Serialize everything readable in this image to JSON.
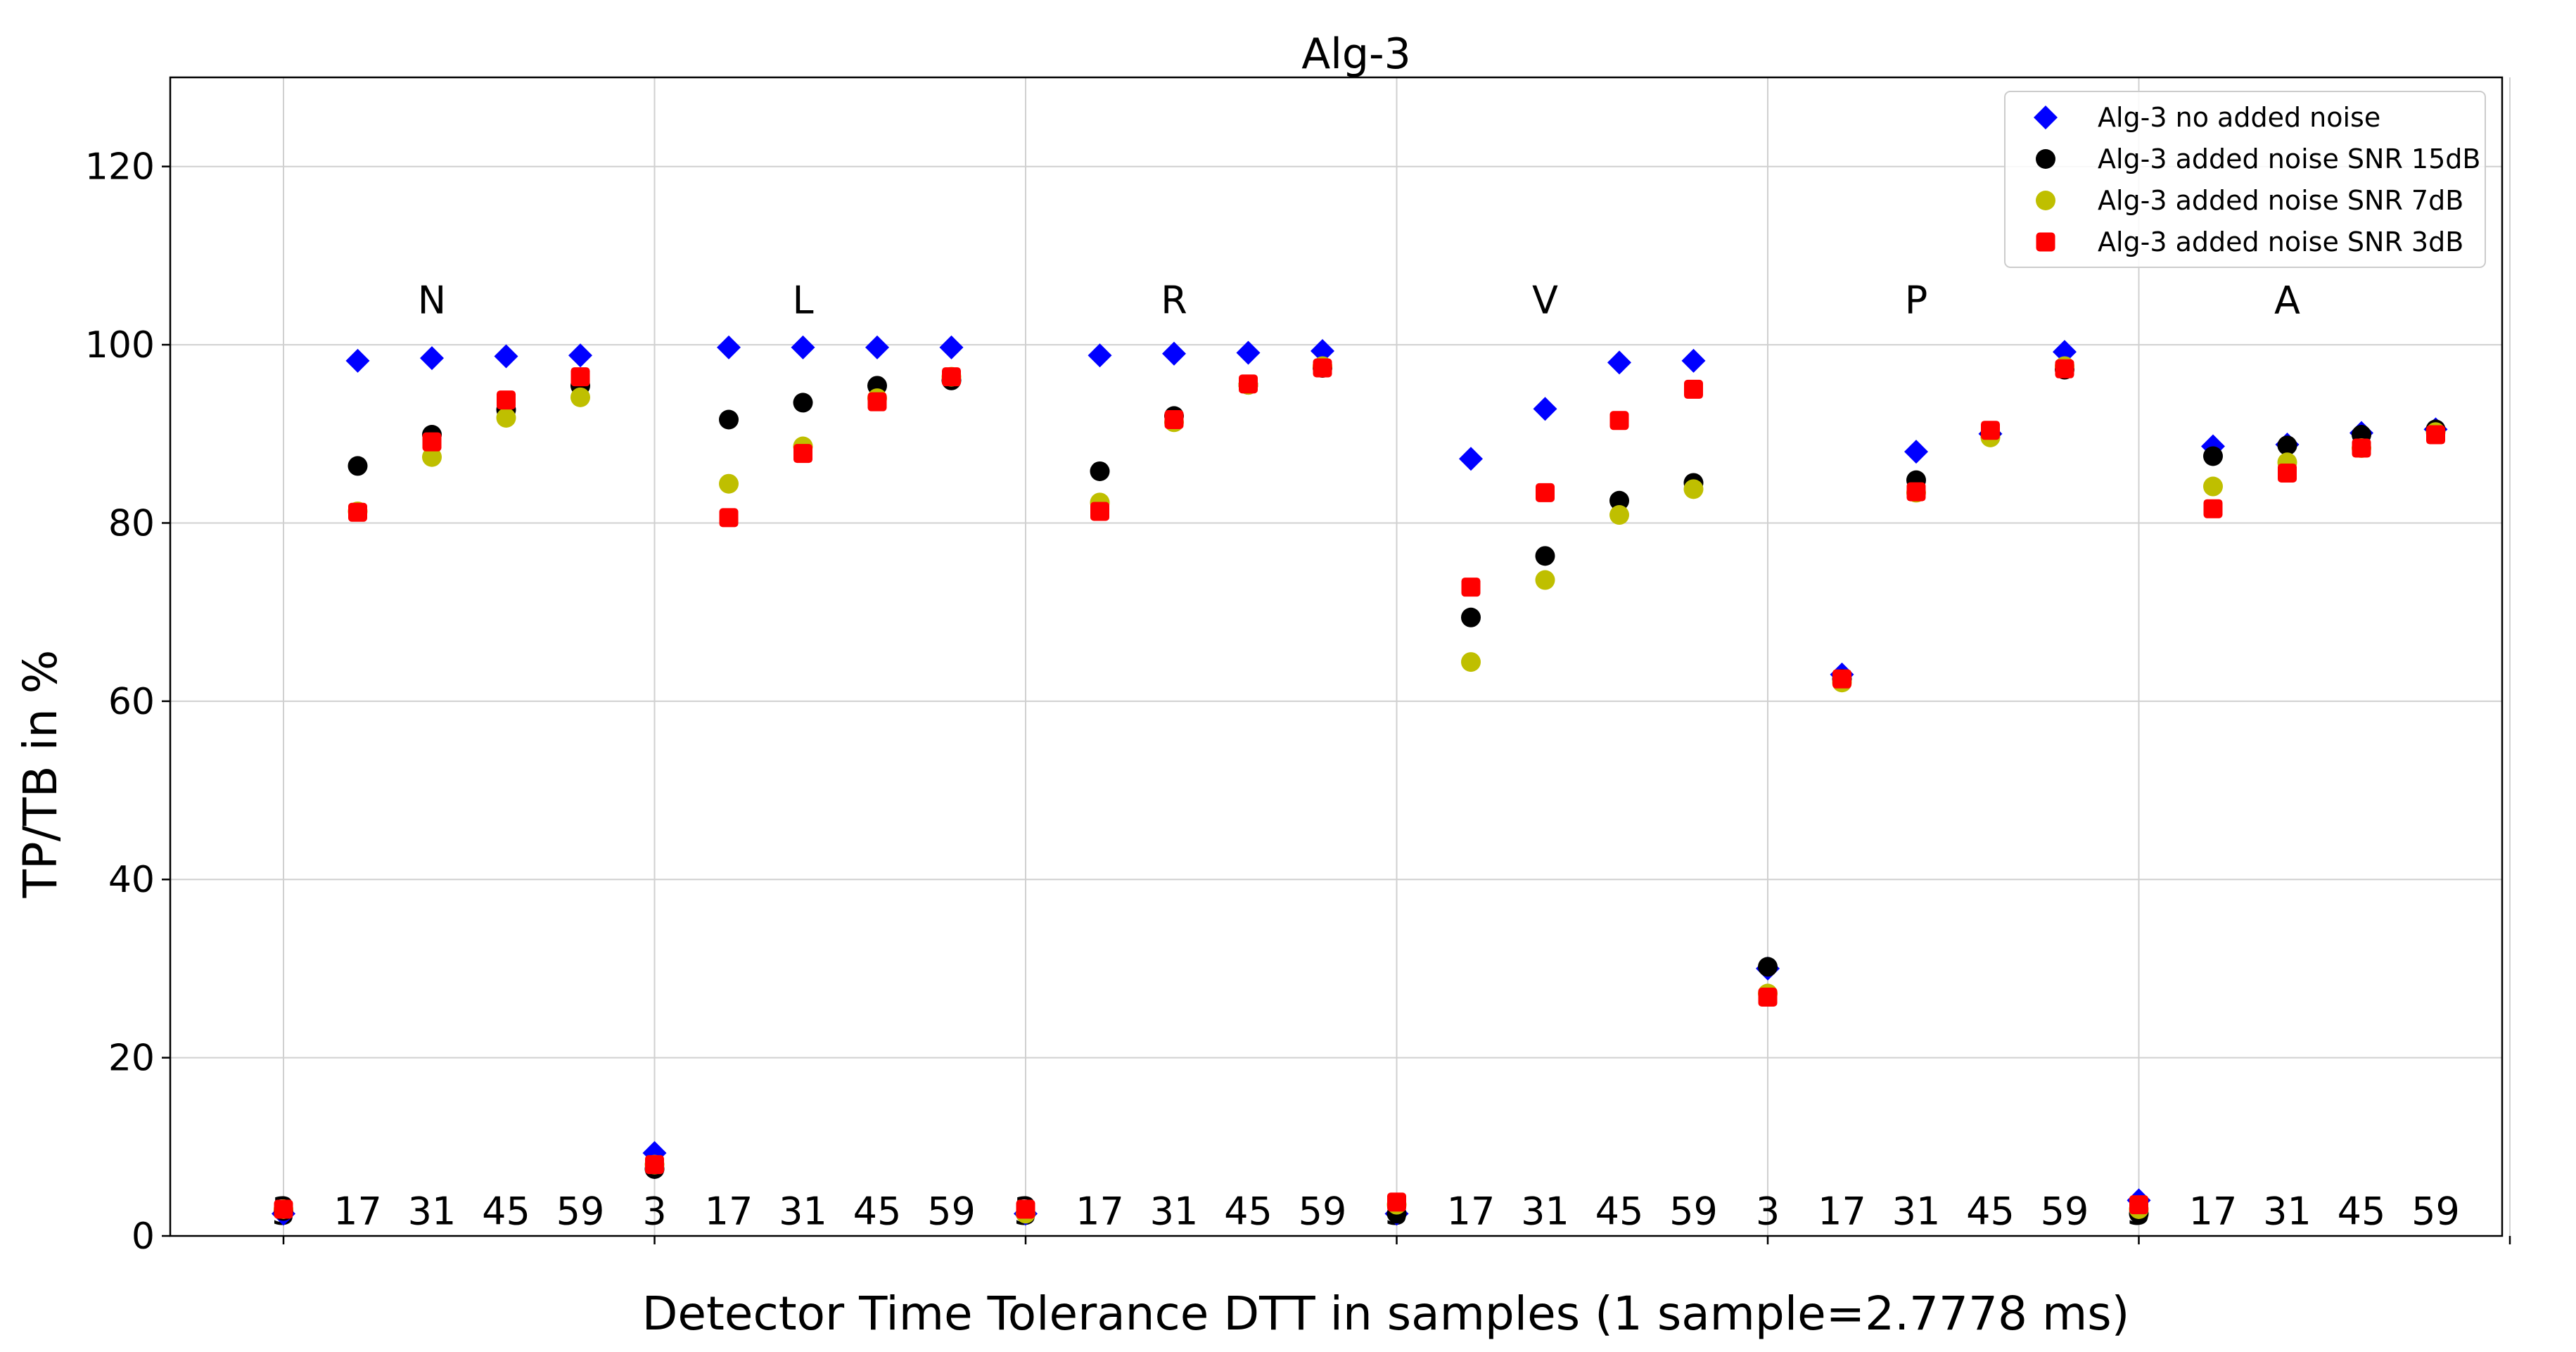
{
  "chart_data": {
    "type": "scatter",
    "title": "Alg-3",
    "xlabel": "Detector Time Tolerance DTT in samples (1 sample=2.7778 ms)",
    "ylabel": "TP/TB in %",
    "ylim": [
      0,
      130
    ],
    "yticks": [
      0,
      20,
      40,
      60,
      80,
      100,
      120
    ],
    "grid": true,
    "legend_position": "top-right",
    "groups": [
      "N",
      "L",
      "R",
      "V",
      "P",
      "A"
    ],
    "dtt_labels": [
      "3",
      "17",
      "31",
      "45",
      "59"
    ],
    "series": [
      {
        "name": "Alg-3 no added noise",
        "color": "#0000ff",
        "marker": "diamond",
        "values": [
          [
            2.5,
            98.2,
            98.5,
            98.7,
            98.8
          ],
          [
            9.3,
            99.7,
            99.7,
            99.7,
            99.7
          ],
          [
            2.5,
            98.8,
            99.0,
            99.1,
            99.3
          ],
          [
            2.5,
            87.2,
            92.8,
            98.0,
            98.2
          ],
          [
            30.0,
            63.0,
            88.0,
            90.0,
            99.2
          ],
          [
            4.0,
            88.6,
            88.8,
            90.1,
            90.5
          ]
        ]
      },
      {
        "name": "Alg-3 added noise SNR 15dB",
        "color": "#000000",
        "marker": "circle",
        "values": [
          [
            2.8,
            86.4,
            89.9,
            92.7,
            95.4
          ],
          [
            7.5,
            91.6,
            93.5,
            95.4,
            96.0
          ],
          [
            2.5,
            85.8,
            92.0,
            95.5,
            97.4
          ],
          [
            2.5,
            69.4,
            76.3,
            82.5,
            84.5
          ],
          [
            30.2,
            62.5,
            84.8,
            90.0,
            97.2
          ],
          [
            2.5,
            87.5,
            88.7,
            89.9,
            90.5
          ]
        ]
      },
      {
        "name": "Alg-3 added noise SNR 7dB",
        "color": "#bfbf00",
        "marker": "circle",
        "values": [
          [
            3.0,
            81.3,
            87.4,
            91.8,
            94.1
          ],
          [
            8.0,
            84.4,
            88.6,
            94.0,
            96.4
          ],
          [
            2.5,
            82.3,
            91.3,
            95.5,
            97.6
          ],
          [
            3.5,
            64.4,
            73.6,
            80.9,
            83.8
          ],
          [
            27.2,
            62.1,
            83.4,
            89.6,
            97.6
          ],
          [
            3.0,
            84.1,
            86.8,
            88.4,
            90.2
          ]
        ]
      },
      {
        "name": "Alg-3 added noise SNR 3dB",
        "color": "#ff0000",
        "marker": "square",
        "values": [
          [
            3.0,
            81.2,
            89.1,
            93.8,
            96.4
          ],
          [
            8.0,
            80.6,
            87.8,
            93.6,
            96.4
          ],
          [
            3.0,
            81.3,
            91.6,
            95.6,
            97.4
          ],
          [
            3.8,
            72.8,
            83.4,
            91.5,
            95.0
          ],
          [
            26.8,
            62.5,
            83.5,
            90.4,
            97.3
          ],
          [
            3.5,
            81.6,
            85.6,
            88.4,
            89.9
          ]
        ]
      }
    ]
  }
}
